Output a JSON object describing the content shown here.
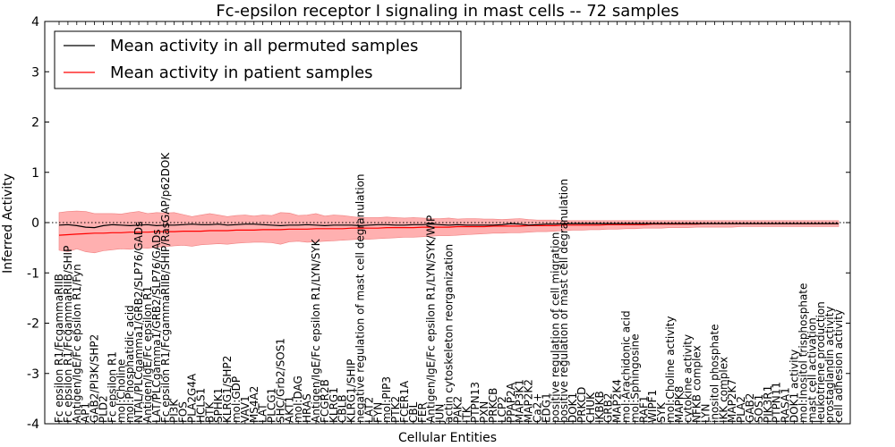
{
  "chart_data": {
    "type": "line",
    "title": "Fc-epsilon receptor I signaling in mast cells -- 72 samples",
    "xlabel": "Cellular Entities",
    "ylabel": "Inferred Activity",
    "ylim": [
      -4,
      4
    ],
    "yticks": [
      -4,
      -3,
      -2,
      -1,
      0,
      1,
      2,
      3,
      4
    ],
    "legend": {
      "position": "top-left",
      "entries": [
        {
          "label": "Mean activity in all permuted samples",
          "color": "#000000"
        },
        {
          "label": "Mean activity in patient samples",
          "color": "#ff0000"
        }
      ]
    },
    "colors": {
      "permuted": "#000000",
      "patient": "#ff0000",
      "band": "#ff6f6f"
    },
    "categories": [
      "Fc epsilon R1/FcgammaRIIB",
      "Fc epsilon R1/FcgammaRIIB/SHIP",
      "Antigen/IgE/Fc epsilon R1/Fyn",
      "AP1",
      "GAB2/PI3K/SHP2",
      "PLD2",
      "Fc epsilon R1",
      "mol:Choline",
      "mol:Phosphatidic acid",
      "NTAL/PLCgamma1/GRB2/SLP76/GADs",
      "Antigen/IgE/Fc epsilon R1",
      "LAT/PLCgamma1/GRB2/SLP76/GADs",
      "Fc epsilon R1/FcgammaRIIB/SHIP/RasGAP/p62DOK",
      "PI3K",
      "FOS",
      "PLA2G4A",
      "HCLS1",
      "BTK",
      "SPHK1",
      "KLRG1/SHP2",
      "mol:GDP",
      "VAV1",
      "MS4A2",
      "LAT",
      "PLCG1",
      "SHC/Grb2/SOS1",
      "AKT1",
      "mol:DAG",
      "HRAS",
      "Antigen/IgE/Fc epsilon R1/LYN/SYK",
      "FCGR2B",
      "KLRG1",
      "CBLB",
      "KLRG1/SHIP",
      "negative regulation of mast cell degranulation",
      "LAT2",
      "FYN",
      "mol:PIP3",
      "PTK2",
      "FCER1A",
      "CBL",
      "FER",
      "Antigen/IgE/Fc epsilon R1/LYN/SYK/WIP",
      "JUN",
      "actin cytoskeleton reorganization",
      "PAK2",
      "ITK",
      "PTPN13",
      "PXN",
      "PRKCB",
      "LCP2",
      "PPAP2A",
      "MAP3K1",
      "MAP2K2",
      "Ca2+",
      "EDG1",
      "positive regulation of cell migration",
      "positive regulation of mast cell degranulation",
      "DOK1",
      "PRKCD",
      "CHUK",
      "IKBKB",
      "GRB2",
      "MAP2K4",
      "mol:Arachidonic acid",
      "mol:Sphingosine",
      "RAF1",
      "WIPF1",
      "SYK",
      "mol:Choline activity",
      "MAPK8",
      "cytokine activity",
      "NFKB complex",
      "LYN",
      "inositol phosphate",
      "IKK complex",
      "MAP2K7",
      "PLA2",
      "GAB2",
      "SOS1",
      "PIK3R1",
      "PTPN11",
      "RASA1",
      "DOK1 activity",
      "mol:Inositol trisphosphate",
      "mast cell activation",
      "leukotriene production",
      "prostaglandin activity",
      "cell adhesion activity"
    ],
    "series": [
      {
        "name": "Mean activity in all permuted samples",
        "values": [
          -0.05,
          -0.04,
          -0.06,
          -0.09,
          -0.1,
          -0.06,
          -0.04,
          -0.05,
          -0.06,
          -0.05,
          -0.04,
          -0.06,
          -0.05,
          -0.05,
          -0.04,
          -0.03,
          -0.04,
          -0.04,
          -0.03,
          -0.05,
          -0.04,
          -0.03,
          -0.03,
          -0.04,
          -0.05,
          -0.06,
          -0.05,
          -0.05,
          -0.04,
          -0.05,
          -0.06,
          -0.05,
          -0.05,
          -0.05,
          -0.06,
          -0.05,
          -0.04,
          -0.04,
          -0.05,
          -0.05,
          -0.04,
          -0.04,
          -0.03,
          -0.04,
          -0.05,
          -0.04,
          -0.05,
          -0.05,
          -0.05,
          -0.05,
          -0.04,
          -0.02,
          -0.03,
          -0.05,
          -0.04,
          -0.03,
          -0.03,
          -0.02,
          -0.02,
          -0.02,
          -0.02,
          -0.02,
          -0.02,
          -0.02,
          -0.02,
          -0.02,
          -0.02,
          -0.02,
          -0.02,
          -0.02,
          -0.02,
          -0.02,
          -0.02,
          -0.02,
          -0.02,
          -0.02,
          -0.02,
          -0.02,
          -0.02,
          -0.02,
          -0.02,
          -0.02,
          -0.02,
          -0.02,
          -0.02,
          -0.02,
          -0.02,
          -0.02,
          -0.02
        ]
      },
      {
        "name": "Mean activity in patient samples",
        "values": [
          -0.25,
          -0.24,
          -0.23,
          -0.22,
          -0.21,
          -0.21,
          -0.2,
          -0.2,
          -0.19,
          -0.19,
          -0.19,
          -0.18,
          -0.18,
          -0.18,
          -0.17,
          -0.17,
          -0.17,
          -0.16,
          -0.16,
          -0.16,
          -0.15,
          -0.15,
          -0.15,
          -0.14,
          -0.14,
          -0.14,
          -0.13,
          -0.13,
          -0.13,
          -0.12,
          -0.12,
          -0.12,
          -0.12,
          -0.11,
          -0.11,
          -0.11,
          -0.11,
          -0.1,
          -0.1,
          -0.1,
          -0.1,
          -0.09,
          -0.09,
          -0.09,
          -0.09,
          -0.08,
          -0.08,
          -0.08,
          -0.08,
          -0.07,
          -0.07,
          -0.07,
          -0.07,
          -0.06,
          -0.06,
          -0.06,
          -0.06,
          -0.05,
          -0.05,
          -0.05,
          -0.05,
          -0.05,
          -0.04,
          -0.04,
          -0.04,
          -0.04,
          -0.04,
          -0.03,
          -0.03,
          -0.03,
          -0.03,
          -0.03,
          -0.03,
          -0.02,
          -0.02,
          -0.02,
          -0.02,
          -0.02,
          -0.02,
          -0.02,
          -0.02,
          -0.02,
          -0.02,
          -0.02,
          -0.02,
          -0.02,
          -0.02,
          -0.02,
          -0.02
        ]
      }
    ],
    "band": {
      "upper": [
        0.2,
        0.22,
        0.23,
        0.22,
        0.18,
        0.18,
        0.18,
        0.17,
        0.2,
        0.22,
        0.18,
        0.2,
        0.19,
        0.2,
        0.16,
        0.12,
        0.15,
        0.18,
        0.15,
        0.12,
        0.14,
        0.15,
        0.13,
        0.15,
        0.14,
        0.2,
        0.19,
        0.14,
        0.15,
        0.18,
        0.13,
        0.15,
        0.14,
        0.12,
        0.1,
        0.1,
        0.1,
        0.11,
        0.1,
        0.09,
        0.1,
        0.09,
        0.08,
        0.08,
        0.09,
        0.07,
        0.08,
        0.08,
        0.07,
        0.07,
        0.06,
        0.07,
        0.08,
        0.06,
        0.05,
        0.05,
        0.05,
        0.04,
        0.04,
        0.04,
        0.04,
        0.04,
        0.04,
        0.04,
        0.04,
        0.04,
        0.04,
        0.04,
        0.04,
        0.04,
        0.04,
        0.04,
        0.04,
        0.04,
        0.04,
        0.04,
        0.04,
        0.04,
        0.04,
        0.04,
        0.04,
        0.04,
        0.04,
        0.04,
        0.04,
        0.04,
        0.04,
        0.04,
        0.04
      ],
      "lower": [
        -0.55,
        -0.58,
        -0.52,
        -0.58,
        -0.6,
        -0.56,
        -0.54,
        -0.52,
        -0.53,
        -0.5,
        -0.51,
        -0.49,
        -0.48,
        -0.46,
        -0.45,
        -0.47,
        -0.44,
        -0.43,
        -0.42,
        -0.43,
        -0.41,
        -0.4,
        -0.39,
        -0.39,
        -0.4,
        -0.43,
        -0.38,
        -0.37,
        -0.39,
        -0.38,
        -0.37,
        -0.36,
        -0.35,
        -0.34,
        -0.33,
        -0.33,
        -0.32,
        -0.31,
        -0.3,
        -0.29,
        -0.29,
        -0.28,
        -0.27,
        -0.26,
        -0.26,
        -0.25,
        -0.24,
        -0.23,
        -0.22,
        -0.21,
        -0.21,
        -0.2,
        -0.2,
        -0.19,
        -0.18,
        -0.18,
        -0.17,
        -0.16,
        -0.15,
        -0.15,
        -0.14,
        -0.14,
        -0.13,
        -0.13,
        -0.12,
        -0.12,
        -0.11,
        -0.11,
        -0.11,
        -0.1,
        -0.1,
        -0.1,
        -0.09,
        -0.09,
        -0.09,
        -0.09,
        -0.09,
        -0.08,
        -0.08,
        -0.08,
        -0.08,
        -0.08,
        -0.08,
        -0.08,
        -0.08,
        -0.08,
        -0.08,
        -0.08,
        -0.08
      ]
    }
  }
}
